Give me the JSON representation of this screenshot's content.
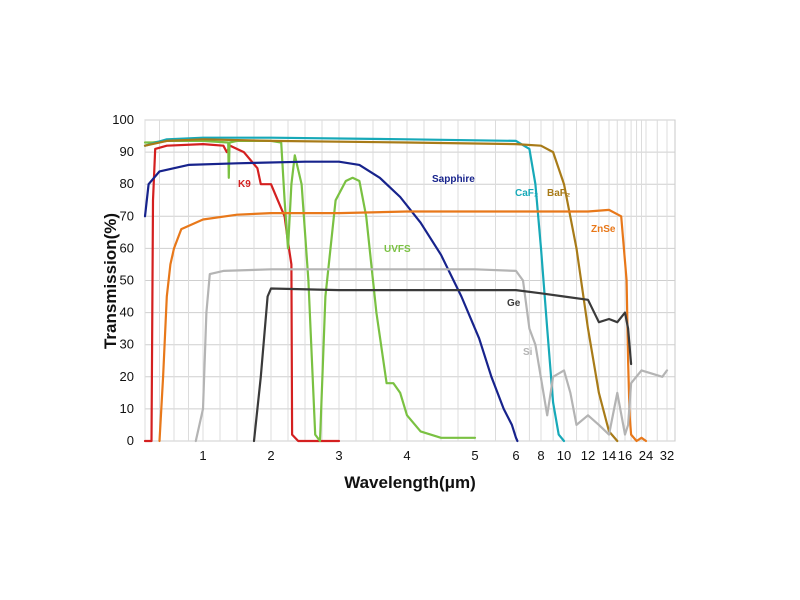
{
  "chart_data": {
    "type": "line",
    "xlabel": "Wavelength(μm)",
    "ylabel": "Transmission(%)",
    "ylim": [
      0,
      100
    ],
    "y_ticks": [
      "0",
      "10",
      "20",
      "30",
      "40",
      "50",
      "60",
      "70",
      "80",
      "90",
      "100"
    ],
    "x_scale": "linear in wavelength from 0.2 to 6 μm, then logarithmic from 6 to 32 μm",
    "x_ticks": [
      "1",
      "2",
      "3",
      "4",
      "5",
      "6",
      "8",
      "10",
      "12",
      "14",
      "16",
      "24",
      "32"
    ],
    "grid": true,
    "legend": "none (series labelled directly on curves)",
    "series": [
      {
        "name": "K9",
        "color": "#d42020",
        "x": [
          0.2,
          0.29,
          0.31,
          0.34,
          0.5,
          1.0,
          1.3,
          1.35,
          1.4,
          1.6,
          1.8,
          1.85,
          1.9,
          2.0,
          2.1,
          2.2,
          2.25,
          2.3,
          2.31,
          2.4,
          3.0
        ],
        "y": [
          0,
          0,
          75,
          91,
          92,
          92.5,
          92,
          90,
          92,
          90,
          85,
          80,
          80,
          80,
          75,
          70,
          62,
          55,
          2,
          0,
          0
        ]
      },
      {
        "name": "UVFS",
        "color": "#7ac142",
        "x": [
          0.2,
          0.3,
          0.5,
          1.0,
          1.37,
          1.38,
          1.39,
          1.5,
          2.0,
          2.15,
          2.2,
          2.25,
          2.3,
          2.35,
          2.45,
          2.55,
          2.65,
          2.72,
          2.8,
          2.95,
          3.1,
          3.2,
          3.3,
          3.4,
          3.55,
          3.7,
          3.8,
          3.9,
          4.0,
          4.2,
          4.5,
          5.0
        ],
        "y": [
          93,
          93,
          93.5,
          93.5,
          93,
          82,
          93,
          93.5,
          93.5,
          93,
          75,
          60,
          80,
          89,
          80,
          50,
          2,
          0,
          45,
          75,
          81,
          82,
          81,
          70,
          40,
          18,
          18,
          15,
          8,
          3,
          1,
          1
        ]
      },
      {
        "name": "Sapphire",
        "color": "#17238c",
        "x": [
          0.2,
          0.25,
          0.4,
          0.8,
          1.5,
          2.5,
          3.0,
          3.3,
          3.6,
          3.9,
          4.2,
          4.5,
          4.8,
          5.1,
          5.4,
          5.7,
          5.9,
          6.0,
          6.1
        ],
        "y": [
          70,
          80,
          84,
          86,
          86.5,
          87,
          87,
          86,
          82,
          76,
          68,
          58,
          45,
          32,
          20,
          10,
          5,
          1,
          0
        ]
      },
      {
        "name": "CaF₂",
        "color": "#17a9b8",
        "x": [
          0.2,
          0.5,
          1.0,
          2.0,
          4.0,
          6.0,
          7.0,
          7.5,
          8.0,
          8.5,
          9.0,
          9.5,
          10.0
        ],
        "y": [
          92,
          94,
          94.5,
          94.5,
          94,
          93.5,
          91,
          80,
          60,
          35,
          12,
          2,
          0
        ]
      },
      {
        "name": "BaF₂",
        "color": "#a87b18",
        "x": [
          0.2,
          0.5,
          1.0,
          2.0,
          4.0,
          6.0,
          8.0,
          9.0,
          10.0,
          11.0,
          12.0,
          13.0,
          14.0,
          15.0
        ],
        "y": [
          92,
          93.5,
          94,
          93.5,
          93,
          92.5,
          92,
          90,
          80,
          60,
          35,
          15,
          3,
          0
        ]
      },
      {
        "name": "ZnSe",
        "color": "#e8781a",
        "x": [
          0.4,
          0.45,
          0.5,
          0.55,
          0.6,
          0.7,
          1.0,
          1.5,
          2.0,
          3.0,
          4.0,
          5.0,
          6.0,
          8.0,
          12.0,
          14.0,
          15.5,
          16.5,
          17.0,
          17.5,
          18.0,
          20.0,
          22.0,
          24.0
        ],
        "y": [
          0,
          20,
          45,
          55,
          60,
          66,
          69,
          70.5,
          71,
          71,
          71.5,
          71.5,
          71.5,
          71.5,
          71.5,
          72,
          70,
          50,
          25,
          8,
          2,
          0,
          1,
          0
        ]
      },
      {
        "name": "Si",
        "color": "#b4b4b4",
        "x": [
          0.9,
          1.0,
          1.05,
          1.1,
          1.3,
          2.0,
          3.0,
          4.0,
          5.0,
          6.0,
          6.5,
          7.0,
          7.5,
          8.5,
          9.0,
          10.0,
          10.5,
          11.0,
          12.0,
          13.0,
          14.0,
          15.0,
          16.0,
          17.0,
          18.0,
          22.0,
          26.0,
          30.0,
          32.0
        ],
        "y": [
          0,
          10,
          40,
          52,
          53,
          53.5,
          53.5,
          53.5,
          53.5,
          53,
          50,
          35,
          30,
          8,
          20,
          22,
          15,
          5,
          8,
          5,
          2,
          15,
          2,
          5,
          18,
          22,
          21,
          20,
          22
        ]
      },
      {
        "name": "Ge",
        "color": "#3a3a3a",
        "x": [
          1.75,
          1.85,
          1.95,
          2.0,
          3.0,
          4.0,
          5.0,
          6.0,
          8.0,
          10.0,
          12.0,
          13.0,
          14.0,
          15.0,
          16.0,
          17.0,
          18.0
        ],
        "y": [
          0,
          20,
          45,
          47.5,
          47,
          47,
          47,
          47,
          46,
          45,
          44,
          37,
          38,
          37,
          40,
          35,
          24
        ]
      }
    ],
    "series_labels": [
      "K9",
      "UVFS",
      "Sapphire",
      "CaF₂",
      "BaF₂",
      "ZnSe",
      "Ge",
      "Si"
    ]
  }
}
